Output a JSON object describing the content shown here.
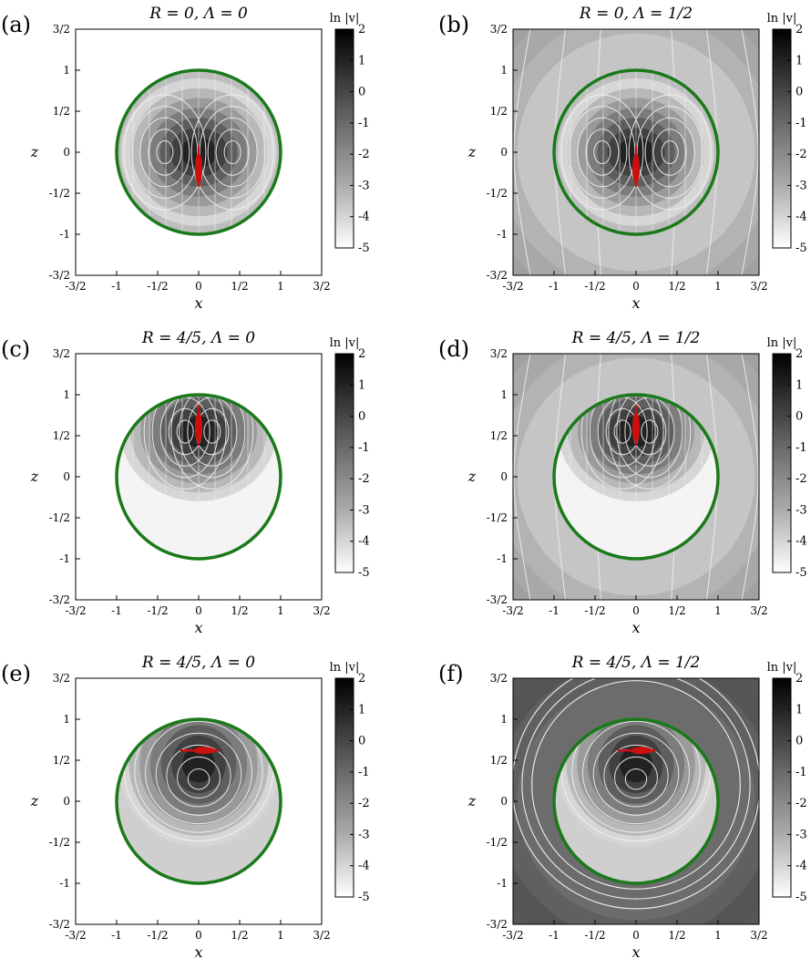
{
  "figure": {
    "colorbar_label": "ln |v|",
    "colorbar_ticks": [
      "2",
      "1",
      "0",
      "-1",
      "-2",
      "-3",
      "-4",
      "-5"
    ],
    "xlabel": "x",
    "ylabel": "z",
    "tick_labels": [
      "3/2",
      "1",
      "1/2",
      "0",
      "-1/2",
      "-1",
      "-3/2"
    ],
    "colors": {
      "drop_outline": "#1a7a1a",
      "swimmer": "#cc1010",
      "streamline": "#f2f2f2"
    }
  },
  "panels": [
    {
      "id": "a",
      "label": "(a)",
      "title": "R = 0,  Λ = 0",
      "R": 0,
      "Lambda": 0,
      "drop_center_z": 0,
      "swimmer": {
        "z": -0.2,
        "orientation": "vertical"
      },
      "field": "two-vortex",
      "outside_flow": false
    },
    {
      "id": "b",
      "label": "(b)",
      "title": "R = 0,  Λ = 1/2",
      "R": 0,
      "Lambda": 0.5,
      "drop_center_z": 0,
      "swimmer": {
        "z": -0.2,
        "orientation": "vertical"
      },
      "field": "two-vortex",
      "outside_flow": true
    },
    {
      "id": "c",
      "label": "(c)",
      "title": "R = 4/5,  Λ = 0",
      "R": 0.8,
      "Lambda": 0,
      "drop_center_z": 0,
      "swimmer": {
        "z": 0.6,
        "orientation": "vertical"
      },
      "field": "upper-vortex",
      "outside_flow": false
    },
    {
      "id": "d",
      "label": "(d)",
      "title": "R = 4/5,  Λ = 1/2",
      "R": 0.8,
      "Lambda": 0.5,
      "drop_center_z": 0,
      "swimmer": {
        "z": 0.6,
        "orientation": "vertical"
      },
      "field": "upper-vortex",
      "outside_flow": true
    },
    {
      "id": "e",
      "label": "(e)",
      "title": "R = 4/5,  Λ = 0",
      "R": 0.8,
      "Lambda": 0,
      "drop_center_z": 0,
      "swimmer": {
        "z": 0.62,
        "orientation": "horizontal"
      },
      "field": "single-vortex",
      "outside_flow": false
    },
    {
      "id": "f",
      "label": "(f)",
      "title": "R = 4/5,  Λ = 1/2",
      "R": 0.8,
      "Lambda": 0.5,
      "drop_center_z": 0,
      "swimmer": {
        "z": 0.62,
        "orientation": "horizontal"
      },
      "field": "single-vortex",
      "outside_flow": true
    }
  ]
}
